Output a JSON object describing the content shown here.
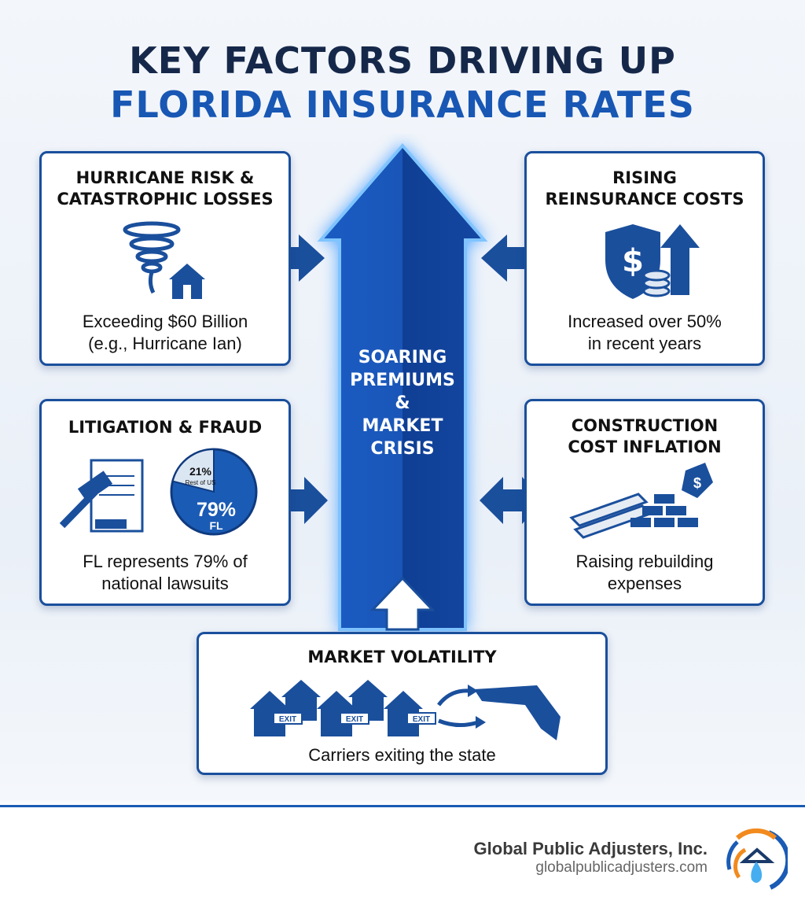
{
  "title": {
    "line1": "KEY FACTORS DRIVING UP",
    "line2": "FLORIDA INSURANCE RATES"
  },
  "center": {
    "line1": "SOARING",
    "line2": "PREMIUMS",
    "line3": "&",
    "line4": "MARKET",
    "line5": "CRISIS"
  },
  "cards": {
    "hurricane": {
      "title1": "HURRICANE RISK &",
      "title2": "CATASTROPHIC LOSSES",
      "text1": "Exceeding $60 Billion",
      "text2": "(e.g., Hurricane Ian)"
    },
    "reinsurance": {
      "title1": "RISING",
      "title2": "REINSURANCE COSTS",
      "text1": "Increased over 50%",
      "text2": "in recent years"
    },
    "litigation": {
      "title1": "LITIGATION & FRAUD",
      "text1": "FL represents 79% of",
      "text2": "national lawsuits",
      "pie": {
        "fl_pct": "79%",
        "fl_label": "FL",
        "rest_pct": "21%",
        "rest_label": "Rest of US",
        "fl_value": 79,
        "rest_value": 21
      }
    },
    "construction": {
      "title1": "CONSTRUCTION",
      "title2": "COST INFLATION",
      "text1": "Raising rebuilding",
      "text2": "expenses",
      "tag": "$"
    },
    "volatility": {
      "title1": "MARKET VOLATILITY",
      "text1": "Carriers exiting the state",
      "exit": "EXIT"
    }
  },
  "footer": {
    "company": "Global Public Adjusters, Inc.",
    "url": "globalpublicadjusters.com"
  },
  "colors": {
    "navy": "#16284a",
    "blue": "#1857b4",
    "accent": "#1a4f9c",
    "orange": "#f28a1e"
  }
}
